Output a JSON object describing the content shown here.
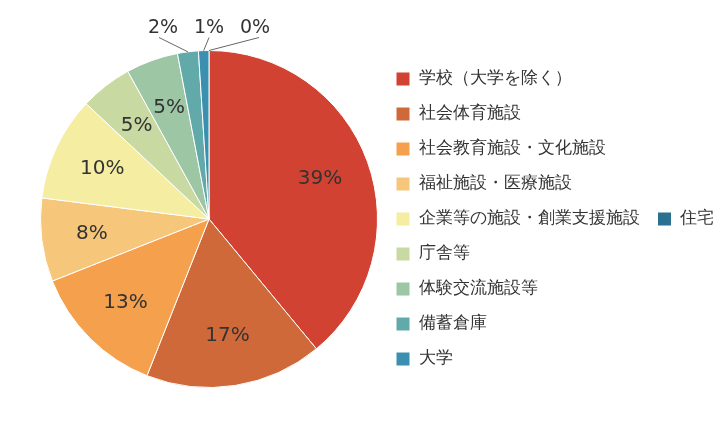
{
  "chart_data": {
    "type": "pie",
    "categories": [
      "学校（大学を除く）",
      "社会体育施設",
      "社会教育施設・文化施設",
      "福祉施設・医療施設",
      "企業等の施設・創業支援施設",
      "庁舎等",
      "体験交流施設等",
      "備蓄倉庫",
      "大学",
      "住宅"
    ],
    "values": [
      39,
      17,
      13,
      8,
      10,
      5,
      5,
      2,
      1,
      0
    ],
    "value_labels": [
      "39%",
      "17%",
      "13%",
      "8%",
      "10%",
      "5%",
      "5%",
      "2%",
      "1%",
      "0%"
    ],
    "colors": [
      "#d14232",
      "#d0693a",
      "#f4a04c",
      "#f6c67a",
      "#f5eda2",
      "#c9d9a2",
      "#9cc6a4",
      "#62aaa9",
      "#3b90b1",
      "#2b6f91"
    ],
    "legend": "right",
    "data_labels": true
  }
}
